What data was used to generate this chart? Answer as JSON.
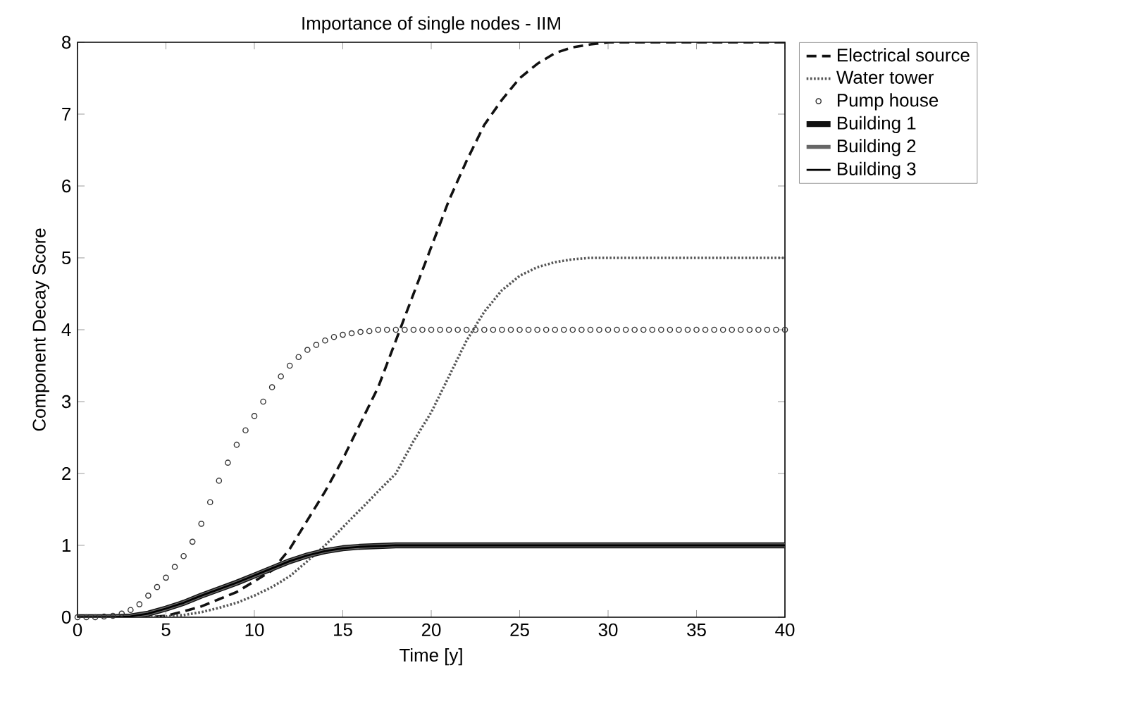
{
  "chart_data": {
    "type": "line",
    "title": "Importance of single nodes - IIM",
    "xlabel": "Time [y]",
    "ylabel": "Component Decay Score",
    "x": [
      0,
      1,
      2,
      3,
      4,
      5,
      6,
      7,
      8,
      9,
      10,
      11,
      12,
      13,
      14,
      15,
      16,
      17,
      18,
      19,
      20,
      21,
      22,
      23,
      24,
      25,
      26,
      27,
      28,
      29,
      30,
      31,
      32,
      33,
      34,
      35,
      36,
      37,
      38,
      39,
      40
    ],
    "series": [
      {
        "name": "Electrical source",
        "color": "#111111",
        "line_style": "dashed",
        "marker": "none",
        "values": [
          0,
          0,
          0,
          0,
          0,
          0.02,
          0.08,
          0.15,
          0.25,
          0.35,
          0.5,
          0.65,
          0.95,
          1.35,
          1.75,
          2.2,
          2.7,
          3.2,
          3.85,
          4.5,
          5.15,
          5.8,
          6.35,
          6.85,
          7.2,
          7.5,
          7.7,
          7.85,
          7.93,
          7.97,
          8,
          8,
          8,
          8,
          8,
          8,
          8,
          8,
          8,
          8,
          8
        ]
      },
      {
        "name": "Water tower",
        "color": "#555555",
        "line_style": "dotted",
        "marker": "none",
        "values": [
          0,
          0,
          0,
          0,
          0,
          0.01,
          0.03,
          0.07,
          0.13,
          0.2,
          0.3,
          0.42,
          0.57,
          0.78,
          1.0,
          1.25,
          1.5,
          1.75,
          2.0,
          2.45,
          2.85,
          3.35,
          3.85,
          4.25,
          4.55,
          4.75,
          4.87,
          4.94,
          4.98,
          5,
          5,
          5,
          5,
          5,
          5,
          5,
          5,
          5,
          5,
          5,
          5
        ]
      },
      {
        "name": "Pump house",
        "type": "scatter",
        "color": "#333333",
        "line_style": "none",
        "marker": "circle",
        "x": [
          0,
          0.5,
          1,
          1.5,
          2,
          2.5,
          3,
          3.5,
          4,
          4.5,
          5,
          5.5,
          6,
          6.5,
          7,
          7.5,
          8,
          8.5,
          9,
          9.5,
          10,
          10.5,
          11,
          11.5,
          12,
          12.5,
          13,
          13.5,
          14,
          14.5,
          15,
          15.5,
          16,
          16.5,
          17,
          17.5,
          18,
          18.5,
          19,
          19.5,
          20,
          20.5,
          21,
          21.5,
          22,
          22.5,
          23,
          23.5,
          24,
          24.5,
          25,
          25.5,
          26,
          26.5,
          27,
          27.5,
          28,
          28.5,
          29,
          29.5,
          30,
          30.5,
          31,
          31.5,
          32,
          32.5,
          33,
          33.5,
          34,
          34.5,
          35,
          35.5,
          36,
          36.5,
          37,
          37.5,
          38,
          38.5,
          39,
          39.5,
          40
        ],
        "values": [
          0,
          0,
          0,
          0.01,
          0.02,
          0.05,
          0.1,
          0.18,
          0.3,
          0.42,
          0.55,
          0.7,
          0.85,
          1.05,
          1.3,
          1.6,
          1.9,
          2.15,
          2.4,
          2.6,
          2.8,
          3.0,
          3.2,
          3.35,
          3.5,
          3.62,
          3.72,
          3.79,
          3.85,
          3.9,
          3.93,
          3.95,
          3.97,
          3.98,
          4,
          4,
          4,
          4,
          4,
          4,
          4,
          4,
          4,
          4,
          4,
          4,
          4,
          4,
          4,
          4,
          4,
          4,
          4,
          4,
          4,
          4,
          4,
          4,
          4,
          4,
          4,
          4,
          4,
          4,
          4,
          4,
          4,
          4,
          4,
          4,
          4,
          4,
          4,
          4,
          4,
          4,
          4,
          4,
          4,
          4,
          4
        ]
      },
      {
        "name": "Building 1",
        "color": "#111111",
        "line_style": "solid",
        "marker": "none",
        "values": [
          0,
          0,
          0,
          0.01,
          0.05,
          0.12,
          0.2,
          0.3,
          0.39,
          0.48,
          0.58,
          0.68,
          0.78,
          0.86,
          0.92,
          0.96,
          0.98,
          0.99,
          1,
          1,
          1,
          1,
          1,
          1,
          1,
          1,
          1,
          1,
          1,
          1,
          1,
          1,
          1,
          1,
          1,
          1,
          1,
          1,
          1,
          1,
          1
        ]
      },
      {
        "name": "Building 2",
        "color": "#666666",
        "line_style": "solid",
        "marker": "none",
        "values": [
          0,
          0,
          0,
          0.01,
          0.05,
          0.12,
          0.2,
          0.3,
          0.39,
          0.48,
          0.58,
          0.68,
          0.78,
          0.86,
          0.92,
          0.96,
          0.98,
          0.99,
          1,
          1,
          1,
          1,
          1,
          1,
          1,
          1,
          1,
          1,
          1,
          1,
          1,
          1,
          1,
          1,
          1,
          1,
          1,
          1,
          1,
          1,
          1
        ]
      },
      {
        "name": "Building 3",
        "color": "#000000",
        "line_style": "solid",
        "marker": "none",
        "values": [
          0,
          0,
          0,
          0.01,
          0.05,
          0.12,
          0.2,
          0.3,
          0.39,
          0.48,
          0.58,
          0.68,
          0.78,
          0.86,
          0.92,
          0.96,
          0.98,
          0.99,
          1,
          1,
          1,
          1,
          1,
          1,
          1,
          1,
          1,
          1,
          1,
          1,
          1,
          1,
          1,
          1,
          1,
          1,
          1,
          1,
          1,
          1,
          1
        ]
      }
    ],
    "xlim": [
      0,
      40
    ],
    "xticks": [
      0,
      5,
      10,
      15,
      20,
      25,
      30,
      35,
      40
    ],
    "ylim": [
      0,
      8
    ],
    "yticks": [
      0,
      1,
      2,
      3,
      4,
      5,
      6,
      7,
      8
    ],
    "grid": false,
    "legend": "right"
  }
}
